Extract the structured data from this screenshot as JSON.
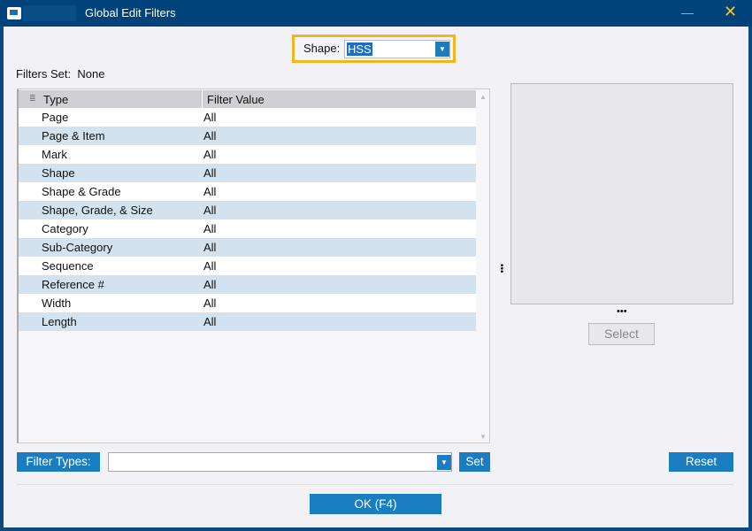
{
  "window": {
    "title": "Global Edit Filters",
    "minimize": "—",
    "close": "✕"
  },
  "shape": {
    "label": "Shape:",
    "value": "HSS"
  },
  "filters_set": {
    "label": "Filters Set:",
    "value": "None"
  },
  "table": {
    "columns": [
      "Type",
      "Filter Value"
    ],
    "rows": [
      [
        "Page",
        "All"
      ],
      [
        "Page & Item",
        "All"
      ],
      [
        "Mark",
        "All"
      ],
      [
        "Shape",
        "All"
      ],
      [
        "Shape & Grade",
        "All"
      ],
      [
        "Shape, Grade, & Size",
        "All"
      ],
      [
        "Category",
        "All"
      ],
      [
        "Sub-Category",
        "All"
      ],
      [
        "Sequence",
        "All"
      ],
      [
        "Reference #",
        "All"
      ],
      [
        "Width",
        "All"
      ],
      [
        "Length",
        "All"
      ]
    ]
  },
  "preview": {
    "ellipsis": "•••",
    "select_label": "Select"
  },
  "bottom": {
    "filter_types_label": "Filter Types:",
    "filter_types_value": "",
    "set_label": "Set",
    "reset_label": "Reset",
    "ok_label": "OK (F4)"
  }
}
